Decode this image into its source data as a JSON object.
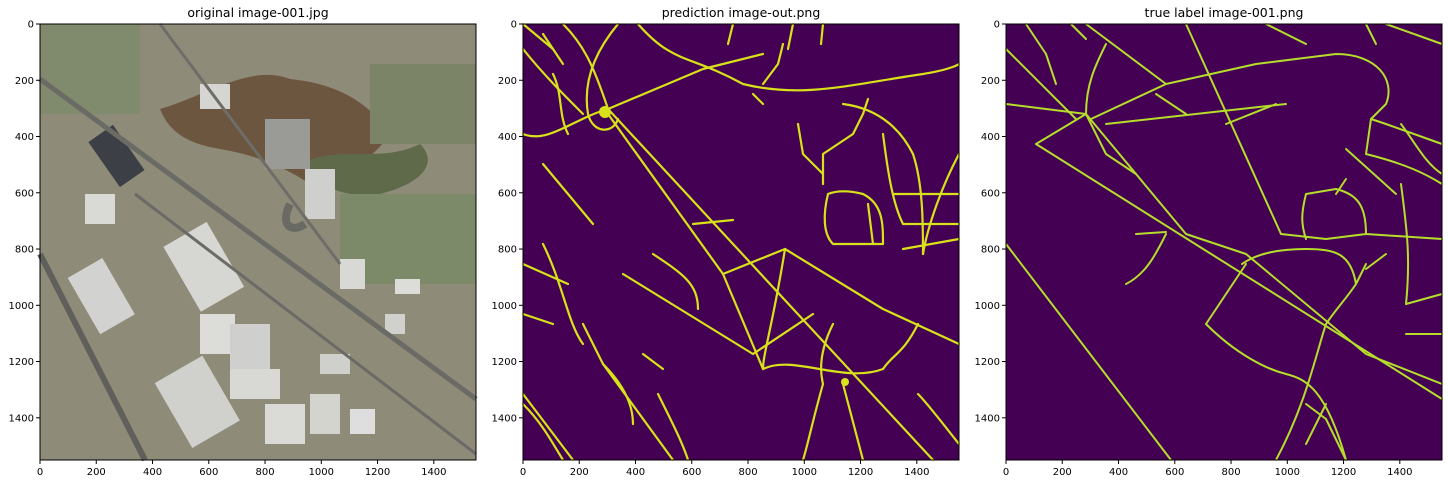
{
  "panels": [
    {
      "id": "original",
      "title": "original image-001.jpg"
    },
    {
      "id": "prediction",
      "title": "prediction image-out.png"
    },
    {
      "id": "truth",
      "title": "true label image-001.png"
    }
  ],
  "axes": {
    "xlim": [
      0,
      1550
    ],
    "ylim": [
      0,
      1550
    ],
    "x_ticks": [
      "0",
      "200",
      "400",
      "600",
      "800",
      "1000",
      "1200",
      "1400"
    ],
    "y_ticks": [
      "0",
      "200",
      "400",
      "600",
      "800",
      "1000",
      "1200",
      "1400"
    ]
  },
  "colors": {
    "mask_background": "#440154",
    "road_prediction": "#d8e219",
    "road_truth": "#b5de2b"
  }
}
